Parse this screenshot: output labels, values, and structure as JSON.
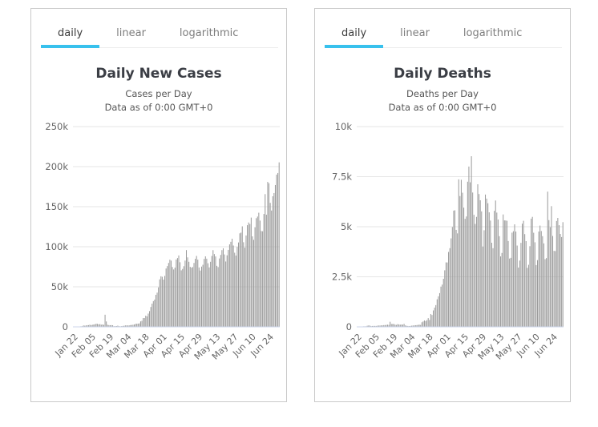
{
  "tabs": [
    "daily",
    "linear",
    "logarithmic"
  ],
  "active_tab": "daily",
  "colors": {
    "accent": "#38c1ed",
    "bar": "#9a9a9a",
    "grid": "#e6e6e6",
    "axis_line": "#ccd6eb",
    "axis_label": "#666666",
    "tab_inactive": "#7d7d7d",
    "title": "#3b3e45",
    "subtitle": "#565656",
    "card_border": "#c9c9c9"
  },
  "chart_data": [
    {
      "type": "bar",
      "title": "Daily New Cases",
      "subtitle_line1": "Cases per Day",
      "subtitle_line2": "Data as of 0:00 GMT+0",
      "xlabel": "",
      "ylabel": "",
      "grid": "on",
      "legend": "none",
      "ylim": [
        0,
        250000
      ],
      "y_ticks": [
        0,
        50000,
        100000,
        150000,
        200000,
        250000
      ],
      "y_tick_labels": [
        "0",
        "50k",
        "100k",
        "150k",
        "200k",
        "250k"
      ],
      "x_start": "Jan 22",
      "x_tick_labels": [
        "Jan 22",
        "Feb 05",
        "Feb 19",
        "Mar 04",
        "Mar 18",
        "Apr 01",
        "Apr 15",
        "Apr 29",
        "May 13",
        "May 27",
        "Jun 10",
        "Jun 24"
      ],
      "x_tick_indices": [
        0,
        14,
        28,
        42,
        56,
        70,
        84,
        98,
        112,
        126,
        140,
        154
      ],
      "bar_color": "#9a9a9a",
      "values": [
        441,
        265,
        688,
        776,
        1776,
        1460,
        1739,
        2069,
        2105,
        2657,
        2127,
        2618,
        2818,
        3243,
        3897,
        3741,
        3151,
        3387,
        2653,
        2984,
        2473,
        15141,
        6734,
        2560,
        2162,
        2067,
        2127,
        1998,
        821,
        892,
        1017,
        1506,
        849,
        648,
        894,
        1113,
        1443,
        1761,
        1811,
        1739,
        1832,
        2232,
        2349,
        2603,
        2935,
        3706,
        3917,
        4040,
        4287,
        6830,
        7511,
        10955,
        10966,
        13937,
        13157,
        16570,
        19670,
        24824,
        29026,
        32158,
        34035,
        39969,
        42750,
        49290,
        59287,
        63159,
        62514,
        58947,
        63554,
        72844,
        75853,
        79771,
        83794,
        82683,
        74710,
        71647,
        73920,
        84083,
        85853,
        89148,
        80619,
        70581,
        72280,
        75693,
        82737,
        95800,
        86715,
        81201,
        74920,
        73928,
        74636,
        79766,
        84949,
        88536,
        83908,
        74109,
        70282,
        75235,
        77480,
        84771,
        88016,
        85107,
        79412,
        74235,
        81195,
        88497,
        95765,
        90864,
        87937,
        76180,
        74621,
        85354,
        89797,
        95800,
        98069,
        90389,
        81572,
        89331,
        96064,
        102936,
        106156,
        110047,
        101532,
        92537,
        89041,
        99780,
        105344,
        116737,
        117661,
        125482,
        105621,
        98840,
        114100,
        126910,
        130260,
        128419,
        136408,
        112944,
        108632,
        124348,
        135655,
        137689,
        142480,
        132646,
        119601,
        119356,
        140914,
        165717,
        140041,
        180914,
        179304,
        154767,
        145212,
        163017,
        167056,
        177012,
        190014,
        192057,
        205331
      ]
    },
    {
      "type": "bar",
      "title": "Daily Deaths",
      "subtitle_line1": "Deaths per Day",
      "subtitle_line2": "Data as of 0:00 GMT+0",
      "xlabel": "",
      "ylabel": "",
      "grid": "on",
      "legend": "none",
      "ylim": [
        0,
        10000
      ],
      "y_ticks": [
        0,
        2500,
        5000,
        7500,
        10000
      ],
      "y_tick_labels": [
        "0",
        "2.5k",
        "5k",
        "7.5k",
        "10k"
      ],
      "x_start": "Jan 22",
      "x_tick_labels": [
        "Jan 22",
        "Feb 05",
        "Feb 19",
        "Mar 04",
        "Mar 18",
        "Apr 01",
        "Apr 15",
        "Apr 29",
        "May 13",
        "May 27",
        "Jun 10",
        "Jun 24"
      ],
      "x_tick_indices": [
        0,
        14,
        28,
        42,
        56,
        70,
        84,
        98,
        112,
        126,
        140,
        154
      ],
      "bar_color": "#9a9a9a",
      "values": [
        17,
        25,
        26,
        26,
        56,
        65,
        66,
        38,
        43,
        46,
        46,
        45,
        58,
        64,
        66,
        73,
        73,
        86,
        89,
        97,
        108,
        97,
        254,
        143,
        143,
        142,
        106,
        98,
        136,
        115,
        109,
        118,
        109,
        150,
        71,
        52,
        44,
        36,
        47,
        58,
        67,
        72,
        82,
        85,
        99,
        106,
        98,
        229,
        271,
        321,
        288,
        338,
        435,
        343,
        639,
        593,
        819,
        961,
        1086,
        1376,
        1525,
        1684,
        2010,
        2110,
        2401,
        2824,
        3219,
        3215,
        3740,
        3928,
        4418,
        4986,
        5804,
        5820,
        4843,
        4667,
        7366,
        6531,
        7344,
        6698,
        5953,
        5395,
        5512,
        7247,
        8004,
        7217,
        8520,
        6707,
        5594,
        5141,
        5490,
        7120,
        6632,
        6320,
        5767,
        4012,
        4822,
        6606,
        6403,
        6172,
        5717,
        5308,
        4201,
        3927,
        5792,
        6309,
        5706,
        5360,
        4528,
        3518,
        3690,
        5613,
        5317,
        5313,
        5296,
        4286,
        3410,
        3446,
        4702,
        4775,
        5119,
        4760,
        4059,
        2961,
        3310,
        4195,
        5152,
        5296,
        4631,
        4280,
        2946,
        3098,
        4028,
        5402,
        5492,
        4700,
        4223,
        3085,
        3331,
        4760,
        5058,
        4785,
        4529,
        4169,
        3381,
        3433,
        6751,
        5330,
        4977,
        6027,
        4538,
        3793,
        3785,
        5285,
        5439,
        5077,
        4639,
        4484,
        5227
      ]
    }
  ]
}
